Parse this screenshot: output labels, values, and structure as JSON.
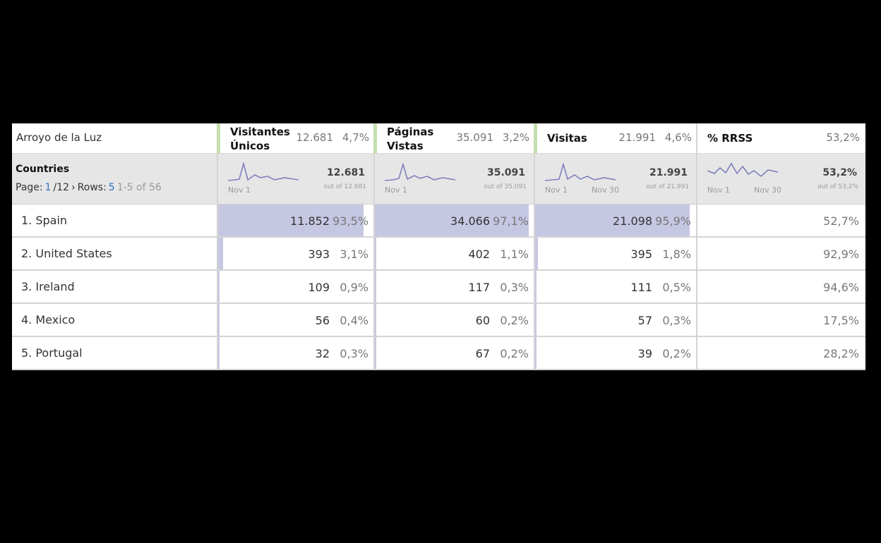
{
  "segment": "Arroyo de la Luz",
  "dimension": "Countries",
  "pagination": {
    "page_label": "Page:",
    "page": "1",
    "pages": "/12",
    "rows_label": "Rows:",
    "rows": "5",
    "range": "1-5 of 56"
  },
  "columns": [
    {
      "name": "Visitantes Únicos",
      "total": "12.681",
      "share": "4,7%",
      "summary_total": "12.681",
      "out_of": "out of 12.681",
      "date_start": "Nov 1"
    },
    {
      "name": "Páginas Vistas",
      "total": "35.091",
      "share": "3,2%",
      "summary_total": "35.091",
      "out_of": "out of 35.091",
      "date_start": "Nov 1"
    },
    {
      "name": "Visitas",
      "total": "21.991",
      "share": "4,6%",
      "summary_total": "21.991",
      "out_of": "out of 21.991",
      "date_start": "Nov 1",
      "date_end": "Nov 30"
    },
    {
      "name": "% RRSS",
      "total": "53,2%",
      "summary_total": "53,2%",
      "out_of": "out of 53,2%",
      "date_start": "Nov 1",
      "date_end": "Nov 30"
    }
  ],
  "rows": [
    {
      "label": "1. Spain",
      "cells": [
        {
          "value": "11.852",
          "share": "93,5%"
        },
        {
          "value": "34.066",
          "share": "97,1%"
        },
        {
          "value": "21.098",
          "share": "95,9%"
        }
      ],
      "rrss": "52,7%"
    },
    {
      "label": "2. United States",
      "cells": [
        {
          "value": "393",
          "share": "3,1%"
        },
        {
          "value": "402",
          "share": "1,1%"
        },
        {
          "value": "395",
          "share": "1,8%"
        }
      ],
      "rrss": "92,9%"
    },
    {
      "label": "3. Ireland",
      "cells": [
        {
          "value": "109",
          "share": "0,9%"
        },
        {
          "value": "117",
          "share": "0,3%"
        },
        {
          "value": "111",
          "share": "0,5%"
        }
      ],
      "rrss": "94,6%"
    },
    {
      "label": "4. Mexico",
      "cells": [
        {
          "value": "56",
          "share": "0,4%"
        },
        {
          "value": "60",
          "share": "0,2%"
        },
        {
          "value": "57",
          "share": "0,3%"
        }
      ],
      "rrss": "17,5%"
    },
    {
      "label": "5. Portugal",
      "cells": [
        {
          "value": "32",
          "share": "0,3%"
        },
        {
          "value": "67",
          "share": "0,2%"
        },
        {
          "value": "39",
          "share": "0,2%"
        }
      ],
      "rrss": "28,2%"
    }
  ]
}
